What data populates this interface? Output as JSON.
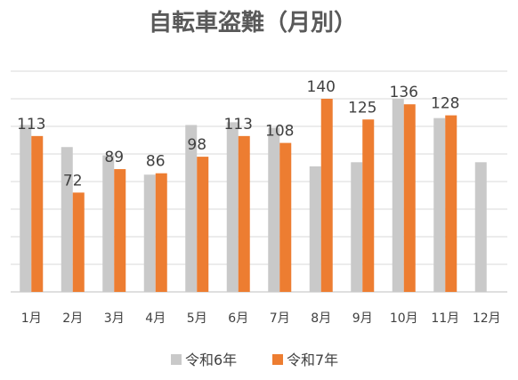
{
  "chart_data": {
    "type": "bar",
    "title": "自転車盗難（月別）",
    "categories": [
      "1月",
      "2月",
      "3月",
      "4月",
      "5月",
      "6月",
      "7月",
      "8月",
      "9月",
      "10月",
      "11月",
      "12月"
    ],
    "series": [
      {
        "name": "令和6年",
        "color": "#c9c9c9",
        "values": [
          121,
          105,
          99,
          85,
          121,
          123,
          119,
          91,
          94,
          140,
          126,
          94
        ]
      },
      {
        "name": "令和7年",
        "color": "#ed7d31",
        "values": [
          113,
          72,
          89,
          86,
          98,
          113,
          108,
          140,
          125,
          136,
          128,
          null
        ],
        "labels": [
          "113",
          "72",
          "89",
          "86",
          "98",
          "113",
          "108",
          "140",
          "125",
          "136",
          "128",
          ""
        ]
      }
    ],
    "ylim": [
      0,
      160
    ],
    "grid": true,
    "legend_position": "bottom",
    "xlabel": "",
    "ylabel": ""
  }
}
